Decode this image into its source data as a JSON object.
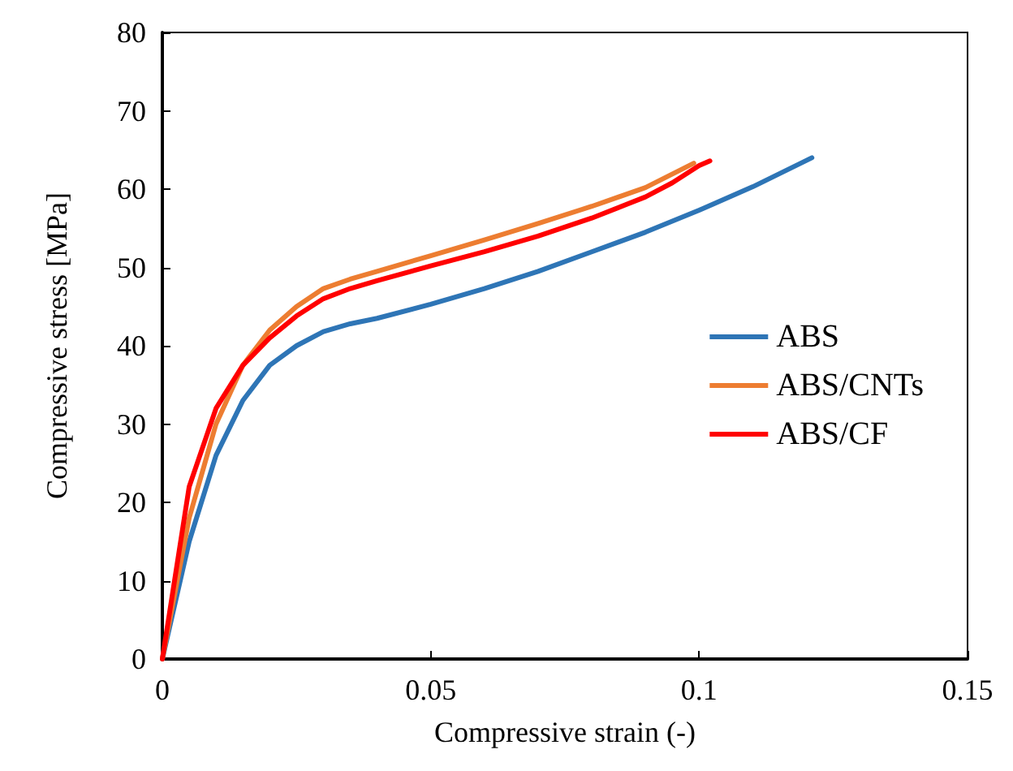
{
  "chart_data": {
    "type": "line",
    "xlabel": "Compressive strain (-)",
    "ylabel": "Compressive stress [MPa]",
    "xlim": [
      0,
      0.15
    ],
    "xticks": [
      {
        "value": 0,
        "label": "0"
      },
      {
        "value": 0.05,
        "label": "0.05"
      },
      {
        "value": 0.1,
        "label": "0.1"
      },
      {
        "value": 0.15,
        "label": "0.15"
      }
    ],
    "ylim": [
      0,
      80
    ],
    "yticks": [
      0,
      10,
      20,
      30,
      40,
      50,
      60,
      70,
      80
    ],
    "grid": false,
    "legend": "right",
    "marker": "none",
    "line_style": "solid",
    "series": [
      {
        "name": "ABS",
        "color": "#2e75b6",
        "x": [
          0,
          0.005,
          0.01,
          0.015,
          0.02,
          0.025,
          0.03,
          0.035,
          0.04,
          0.05,
          0.06,
          0.07,
          0.08,
          0.09,
          0.1,
          0.11,
          0.121
        ],
        "values": [
          0,
          15,
          26,
          33,
          37.5,
          40,
          41.8,
          42.8,
          43.5,
          45.3,
          47.3,
          49.5,
          52,
          54.5,
          57.3,
          60.3,
          64
        ]
      },
      {
        "name": "ABS/CNTs",
        "color": "#ed7d31",
        "x": [
          0,
          0.005,
          0.01,
          0.015,
          0.02,
          0.025,
          0.03,
          0.035,
          0.04,
          0.05,
          0.06,
          0.07,
          0.08,
          0.09,
          0.099
        ],
        "values": [
          0,
          18,
          30,
          37.5,
          42,
          45,
          47.3,
          48.5,
          49.5,
          51.5,
          53.5,
          55.6,
          57.8,
          60.2,
          63.3
        ]
      },
      {
        "name": "ABS/CF",
        "color": "#ff0000",
        "x": [
          0,
          0.005,
          0.01,
          0.015,
          0.02,
          0.025,
          0.03,
          0.035,
          0.04,
          0.05,
          0.06,
          0.07,
          0.08,
          0.09,
          0.095,
          0.1,
          0.102
        ],
        "values": [
          0,
          22,
          32,
          37.5,
          41,
          43.8,
          46,
          47.3,
          48.3,
          50.2,
          52,
          54,
          56.3,
          59,
          60.8,
          63,
          63.6
        ]
      }
    ]
  }
}
